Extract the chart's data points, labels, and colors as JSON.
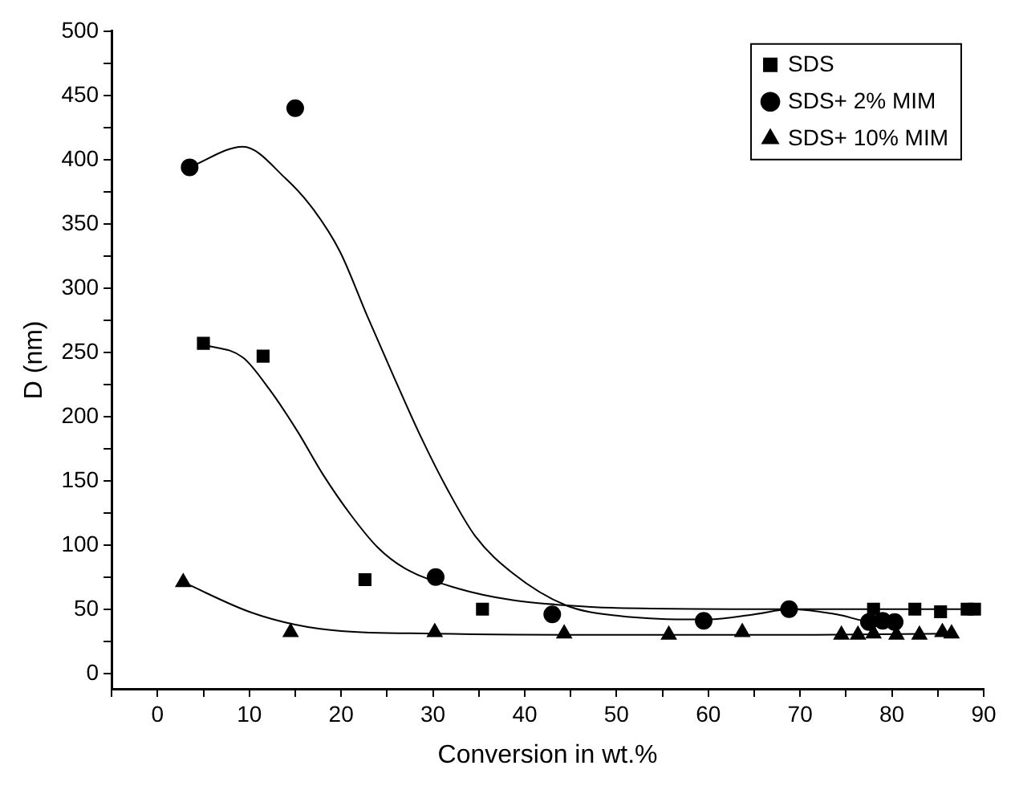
{
  "chart_data": {
    "type": "scatter",
    "xlabel": "Conversion in wt.%",
    "ylabel": "D (nm)",
    "xlim": [
      -5,
      90
    ],
    "ylim": [
      -12,
      500
    ],
    "xticks": [
      {
        "value": -5,
        "label": null
      },
      0,
      {
        "value": 5,
        "label": null
      },
      10,
      {
        "value": 15,
        "label": null
      },
      20,
      {
        "value": 25,
        "label": null
      },
      30,
      {
        "value": 35,
        "label": null
      },
      40,
      {
        "value": 45,
        "label": null
      },
      50,
      {
        "value": 55,
        "label": null
      },
      60,
      {
        "value": 65,
        "label": null
      },
      70,
      {
        "value": 75,
        "label": null
      },
      80,
      {
        "value": 85,
        "label": null
      },
      90
    ],
    "yticks": [
      0,
      {
        "value": 25,
        "label": null
      },
      50,
      {
        "value": 75,
        "label": null
      },
      100,
      {
        "value": 125,
        "label": null
      },
      150,
      {
        "value": 175,
        "label": null
      },
      200,
      {
        "value": 225,
        "label": null
      },
      250,
      {
        "value": 275,
        "label": null
      },
      300,
      {
        "value": 325,
        "label": null
      },
      350,
      {
        "value": 375,
        "label": null
      },
      400,
      {
        "value": 425,
        "label": null
      },
      450,
      {
        "value": 475,
        "label": null
      },
      500
    ],
    "grid": false,
    "legend": "top right",
    "series": [
      {
        "name": "SDS",
        "type": "scatter",
        "marker": "square",
        "color": "#000000",
        "x": [
          5,
          11.5,
          22.6,
          35.4,
          78,
          82.5,
          85.3,
          88.2,
          89
        ],
        "values": [
          257,
          247,
          73,
          50,
          50,
          50,
          48,
          50,
          50
        ]
      },
      {
        "name": "SDS+ 2% MIM",
        "type": "scatter",
        "marker": "circle",
        "color": "#000000",
        "x": [
          3.5,
          15,
          30.3,
          43,
          59.5,
          68.8,
          77.5,
          79,
          80.3
        ],
        "values": [
          394,
          440,
          75,
          46,
          41,
          50,
          40,
          41,
          40
        ]
      },
      {
        "name": "SDS+ 10% MIM",
        "type": "scatter",
        "marker": "triangle",
        "color": "#000000",
        "x": [
          2.8,
          14.5,
          30.2,
          44.3,
          55.7,
          63.7,
          74.5,
          76.3,
          78,
          80.5,
          83,
          85.5,
          86.5
        ],
        "values": [
          71,
          32,
          32,
          31,
          30,
          32,
          30,
          30,
          31,
          30,
          30,
          32,
          31
        ]
      },
      {
        "type": "line",
        "marker": "none",
        "color": "#000000",
        "x": [
          5,
          9.3,
          12.2,
          15.2,
          18.1,
          21.1,
          24,
          26.9,
          32.8,
          38.7,
          44.5,
          50,
          70,
          89
        ],
        "values": [
          256,
          246,
          221,
          189,
          154,
          123,
          98,
          82,
          66,
          57,
          53,
          51,
          50,
          50
        ]
      },
      {
        "type": "line",
        "marker": "none",
        "color": "#000000",
        "x": [
          3.5,
          9.3,
          14,
          17,
          19.9,
          22.8,
          25.8,
          28.7,
          31.6,
          34.6,
          38.7,
          44.5,
          50,
          60,
          65,
          69,
          74,
          78,
          80.3
        ],
        "values": [
          394,
          410,
          385,
          361,
          328,
          279,
          230,
          184,
          143,
          107,
          78,
          53,
          45,
          42,
          46,
          50,
          46,
          40,
          40
        ]
      },
      {
        "type": "line",
        "marker": "none",
        "color": "#000000",
        "x": [
          2.8,
          10,
          15,
          20,
          30,
          50,
          70,
          86.5
        ],
        "values": [
          71,
          48,
          38,
          33,
          31,
          30,
          30,
          31
        ]
      }
    ]
  }
}
